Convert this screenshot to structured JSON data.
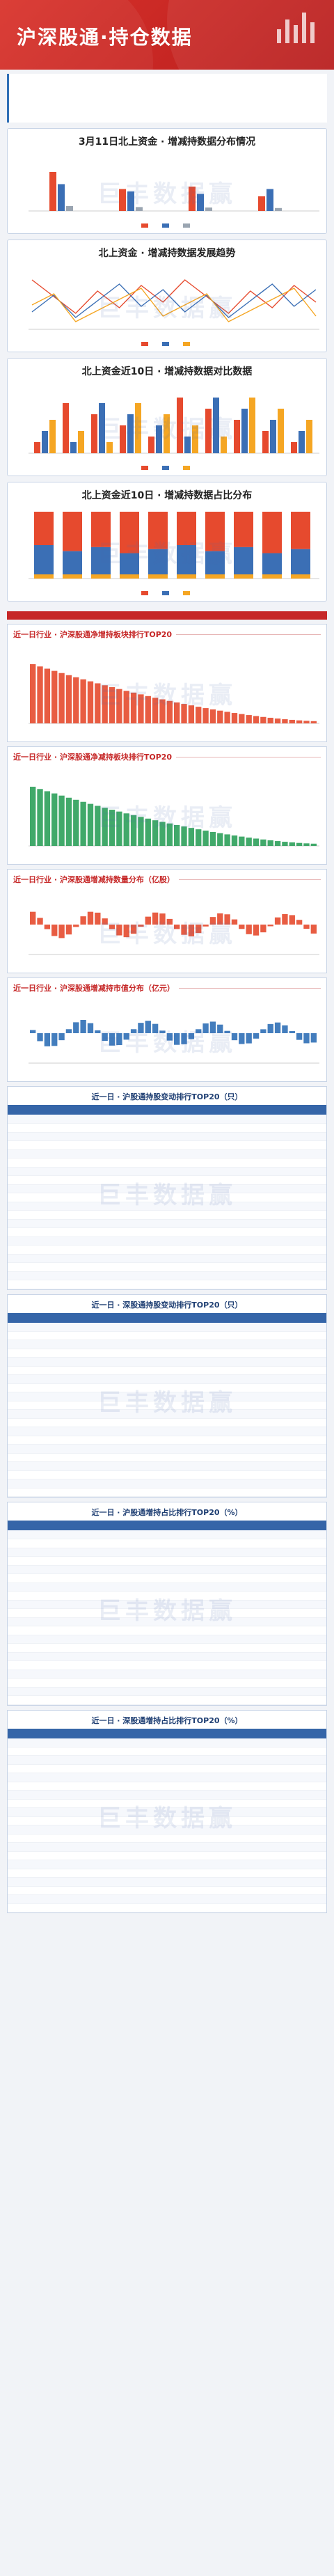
{
  "hero": {
    "title": "沪深股通·持仓数据"
  },
  "intro": {
    "text": ""
  },
  "colors": {
    "red": "#e64a2e",
    "blue": "#3b6fb5",
    "orange": "#f5a623",
    "green": "#2ca05a",
    "gray": "#9aa5b1"
  },
  "charts": {
    "distribution": {
      "title": "3月11日北上资金 · 增减持数据分布情况",
      "legend": [
        "",
        "",
        ""
      ]
    },
    "trend": {
      "title": "北上资金 · 增减持数据发展趋势",
      "legend": [
        "",
        "",
        ""
      ]
    },
    "compare": {
      "title": "北上资金近10日 · 增减持数据对比数据",
      "legend": [
        "",
        "",
        ""
      ]
    },
    "ratio": {
      "title": "北上资金近10日 · 增减持数据占比分布",
      "legend": [
        "",
        "",
        ""
      ]
    }
  },
  "section": {
    "title": ""
  },
  "sub_charts": [
    {
      "tag": "近一日行业 · 沪深股通净增持板块排行TOP20",
      "note": ""
    },
    {
      "tag": "近一日行业 · 沪深股通净减持板块排行TOP20",
      "note": ""
    },
    {
      "tag": "近一日行业 · 沪深股通增减持数量分布（亿股）",
      "note": ""
    },
    {
      "tag": "近一日行业 · 沪深股通增减持市值分布（亿元）",
      "note": ""
    }
  ],
  "tables": [
    {
      "title": "近一日 · 沪股通持股变动排行TOP20（只）",
      "headers": [
        "",
        "",
        "",
        "",
        "",
        ""
      ]
    },
    {
      "title": "近一日 · 深股通持股变动排行TOP20（只）",
      "headers": [
        "",
        "",
        "",
        "",
        "",
        ""
      ]
    },
    {
      "title": "近一日 · 沪股通增持占比排行TOP20（%）",
      "headers": [
        "",
        "",
        "",
        "",
        "",
        ""
      ]
    },
    {
      "title": "近一日 · 深股通增持占比排行TOP20（%）",
      "headers": [
        "",
        "",
        "",
        "",
        "",
        ""
      ]
    }
  ],
  "watermark": "巨丰数据赢"
}
